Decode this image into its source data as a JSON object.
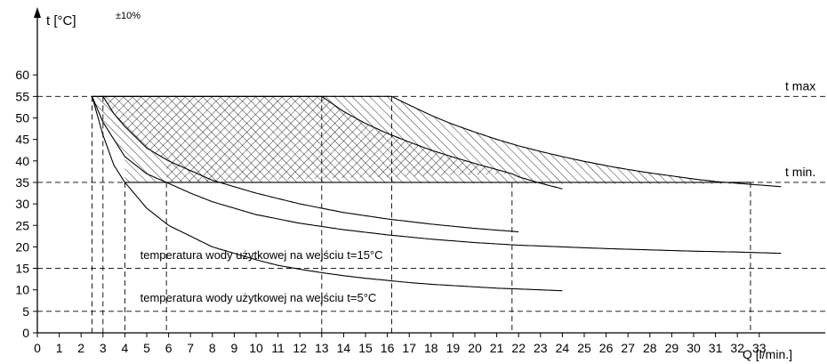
{
  "chart_data": {
    "type": "line",
    "title": "",
    "ylabel": "t [°C]",
    "ylabel_tolerance": "±10%",
    "xlabel": "Q [l/min.]",
    "xlim": [
      0,
      34
    ],
    "ylim": [
      0,
      60
    ],
    "x_ticks": [
      0,
      1,
      2,
      3,
      4,
      5,
      6,
      7,
      8,
      9,
      10,
      11,
      12,
      13,
      14,
      15,
      16,
      17,
      18,
      19,
      20,
      21,
      22,
      23,
      24,
      25,
      26,
      27,
      28,
      29,
      30,
      31,
      32,
      33
    ],
    "y_ticks": [
      0,
      5,
      10,
      15,
      20,
      25,
      30,
      35,
      40,
      45,
      50,
      55,
      60
    ],
    "reference_lines": [
      {
        "y": 55,
        "label": "t max"
      },
      {
        "y": 35,
        "label": "t min."
      },
      {
        "y": 15,
        "label": ""
      },
      {
        "y": 5,
        "label": ""
      }
    ],
    "annotations": [
      {
        "text": "temperatura wody użytkowej na wejściu t=15°C",
        "x": 4.7,
        "y": 17
      },
      {
        "text": "temperatura wody użytkowej na wejściu t=5°C",
        "x": 4.7,
        "y": 7
      }
    ],
    "vertical_guides": [
      {
        "x": 2.5,
        "y": 55
      },
      {
        "x": 3.0,
        "y": 55
      },
      {
        "x": 4.0,
        "y": 35
      },
      {
        "x": 5.9,
        "y": 35
      },
      {
        "x": 13.0,
        "y": 55
      },
      {
        "x": 16.2,
        "y": 55
      },
      {
        "x": 21.7,
        "y": 35
      },
      {
        "x": 32.6,
        "y": 35
      }
    ],
    "series": [
      {
        "points": [
          [
            2.5,
            55
          ],
          [
            3,
            46
          ],
          [
            3.5,
            39
          ],
          [
            4,
            35
          ],
          [
            5,
            29
          ],
          [
            6,
            25
          ],
          [
            7,
            22.5
          ],
          [
            8,
            20
          ],
          [
            9,
            18.5
          ],
          [
            10,
            17
          ],
          [
            11,
            15.7
          ],
          [
            12,
            14.8
          ],
          [
            13,
            14
          ],
          [
            14,
            13.3
          ],
          [
            15,
            12.7
          ],
          [
            16,
            12.2
          ],
          [
            17,
            11.7
          ],
          [
            18,
            11.3
          ],
          [
            19,
            11
          ],
          [
            20,
            10.7
          ],
          [
            21,
            10.4
          ],
          [
            22,
            10.2
          ],
          [
            23,
            10
          ],
          [
            24,
            9.8
          ]
        ]
      },
      {
        "points": [
          [
            2.5,
            55
          ],
          [
            3,
            49
          ],
          [
            3.5,
            45
          ],
          [
            4,
            41
          ],
          [
            5,
            37
          ],
          [
            5.9,
            35
          ],
          [
            7,
            32.5
          ],
          [
            8,
            30.5
          ],
          [
            10,
            27.5
          ],
          [
            12,
            25.5
          ],
          [
            14,
            24
          ],
          [
            16,
            22.8
          ],
          [
            18,
            21.8
          ],
          [
            20,
            21
          ],
          [
            22,
            20.4
          ],
          [
            24,
            20
          ],
          [
            26,
            19.6
          ],
          [
            28,
            19.3
          ],
          [
            30,
            19
          ],
          [
            32,
            18.8
          ],
          [
            34,
            18.5
          ]
        ]
      },
      {
        "points": [
          [
            3,
            55
          ],
          [
            3.5,
            51
          ],
          [
            4,
            48
          ],
          [
            5,
            43
          ],
          [
            6,
            40
          ],
          [
            8,
            35.5
          ],
          [
            10,
            32.5
          ],
          [
            12,
            30
          ],
          [
            13,
            29
          ],
          [
            14,
            28
          ],
          [
            16,
            26.5
          ],
          [
            18,
            25.3
          ],
          [
            20,
            24.3
          ],
          [
            22,
            23.5
          ]
        ]
      },
      {
        "points": [
          [
            2.5,
            55
          ],
          [
            13,
            55
          ],
          [
            14,
            51.5
          ],
          [
            15,
            48.7
          ],
          [
            16,
            46.4
          ],
          [
            17,
            44.4
          ],
          [
            18,
            42.5
          ],
          [
            19,
            40.9
          ],
          [
            20,
            39.4
          ],
          [
            21,
            38
          ],
          [
            21.7,
            37
          ],
          [
            22,
            36.3
          ],
          [
            23,
            34.8
          ],
          [
            24,
            33.5
          ]
        ]
      },
      {
        "points": [
          [
            16.2,
            55
          ],
          [
            17,
            53
          ],
          [
            18,
            50.6
          ],
          [
            19,
            48.5
          ],
          [
            20,
            46.7
          ],
          [
            21,
            45
          ],
          [
            22,
            43.5
          ],
          [
            23,
            42.2
          ],
          [
            24,
            41
          ],
          [
            25,
            39.9
          ],
          [
            26,
            38.9
          ],
          [
            27,
            38
          ],
          [
            28,
            37.2
          ],
          [
            29,
            36.5
          ],
          [
            30,
            35.8
          ],
          [
            31,
            35.2
          ],
          [
            32,
            34.8
          ],
          [
            33,
            34.4
          ],
          [
            34,
            34
          ]
        ]
      }
    ]
  }
}
